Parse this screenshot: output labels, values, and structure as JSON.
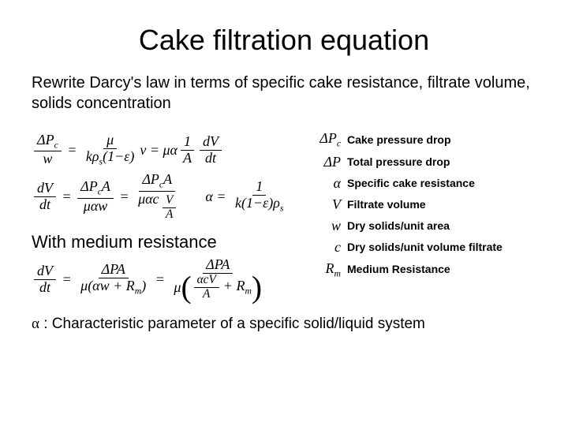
{
  "title": "Cake filtration equation",
  "intro": "Rewrite Darcy's law in terms of specific cake resistance, filtrate volume, solids concentration",
  "subhead": "With medium resistance",
  "legend": [
    {
      "sym": "ΔP",
      "sub": "c",
      "desc": "Cake pressure drop"
    },
    {
      "sym": "ΔP",
      "sub": "",
      "desc": "Total pressure drop"
    },
    {
      "sym": "α",
      "sub": "",
      "desc": "Specific cake resistance",
      "italic_alpha": true
    },
    {
      "sym": "V",
      "sub": "",
      "desc": "Filtrate volume"
    },
    {
      "sym": "w",
      "sub": "",
      "desc": "Dry solids/unit area"
    },
    {
      "sym": "c",
      "sub": "",
      "desc": "Dry solids/unit volume filtrate"
    },
    {
      "sym": "R",
      "sub": "m",
      "desc": "Medium Resistance"
    }
  ],
  "footer_prefix": "α",
  "footer_text": " : Characteristic parameter of a specific solid/liquid system"
}
